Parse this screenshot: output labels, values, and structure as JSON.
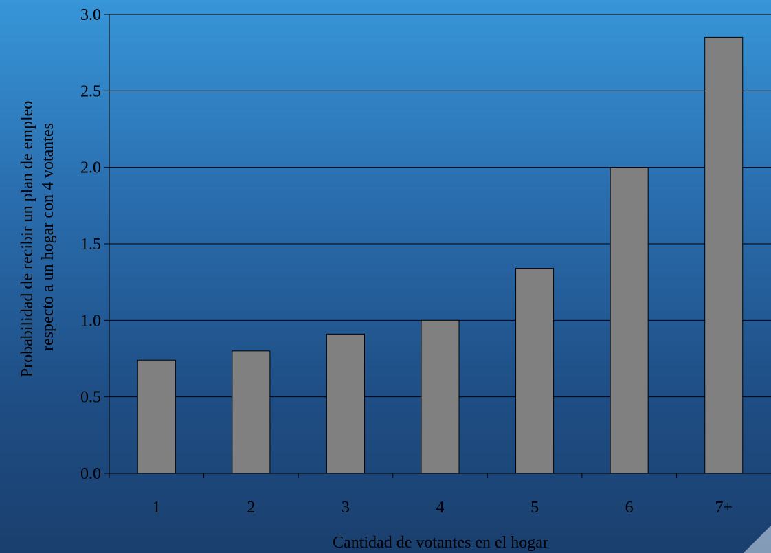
{
  "chart_data": {
    "type": "bar",
    "categories": [
      "1",
      "2",
      "3",
      "4",
      "5",
      "6",
      "7+"
    ],
    "values": [
      0.74,
      0.8,
      0.91,
      1.0,
      1.34,
      2.0,
      2.85
    ],
    "title": "",
    "xlabel": "Cantidad de votantes en el hogar",
    "ylabel_lines": [
      "Probabilidad de recibir un plan de empleo",
      "respecto a un hogar con 4 votantes"
    ],
    "ylim": [
      0,
      3.0
    ],
    "yticks": [
      "0.0",
      "0.5",
      "1.0",
      "1.5",
      "2.0",
      "2.5",
      "3.0"
    ],
    "grid": true,
    "legend": "none",
    "colors": {
      "bar_fill": "#808080",
      "bar_stroke": "#000000",
      "gridline": "#000000",
      "axis": "#000000",
      "text": "#000000",
      "background_top": "#3796d8",
      "background_bottom": "#1a3f6e"
    }
  }
}
